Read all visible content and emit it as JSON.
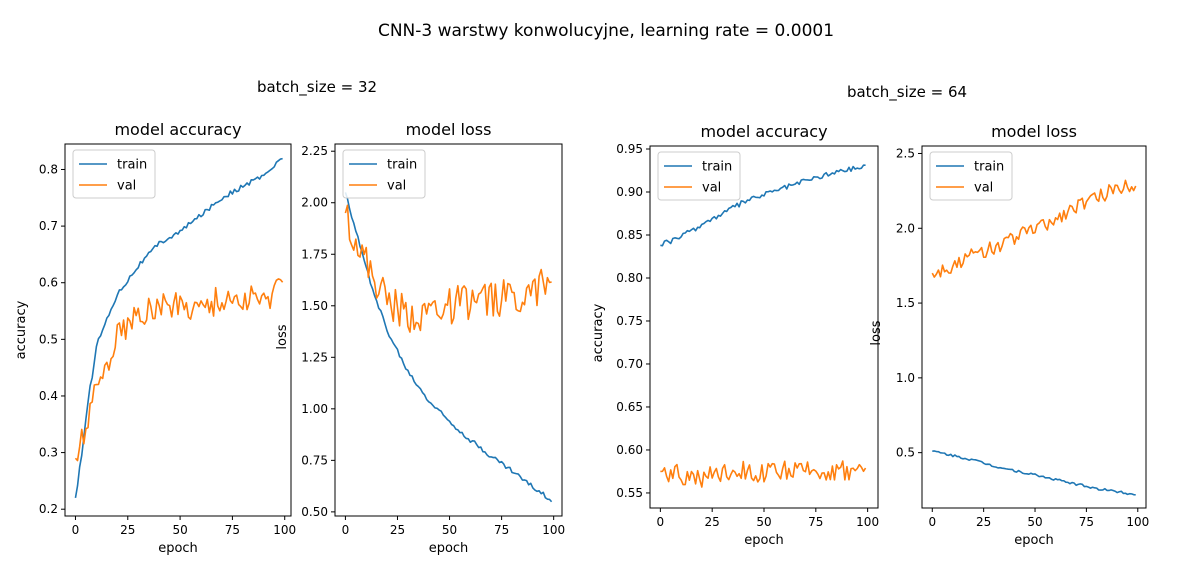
{
  "title": "CNN-3 warstwy konwolucyjne, learning rate = 0.0001",
  "groups": [
    {
      "label": "batch_size = 32"
    },
    {
      "label": "batch_size = 64"
    }
  ],
  "colors": {
    "train": "#1f77b4",
    "val": "#ff7f0e"
  },
  "chart_data": [
    {
      "type": "line",
      "title": "model accuracy",
      "xlabel": "epoch",
      "ylabel": "accuracy",
      "xlim": [
        -5,
        103
      ],
      "ylim": [
        0.188,
        0.845
      ],
      "xticks": [
        0,
        25,
        50,
        75,
        100
      ],
      "yticks": [
        0.2,
        0.3,
        0.4,
        0.5,
        0.6,
        0.7,
        0.8
      ],
      "ytick_labels": [
        "0.2",
        "0.3",
        "0.4",
        "0.5",
        "0.6",
        "0.7",
        "0.8"
      ],
      "legend": "upper-left",
      "x": [
        0,
        10,
        20,
        30,
        40,
        50,
        60,
        70,
        80,
        90,
        99
      ],
      "series": [
        {
          "name": "train",
          "values": [
            0.22,
            0.49,
            0.58,
            0.63,
            0.67,
            0.69,
            0.72,
            0.75,
            0.77,
            0.79,
            0.82
          ]
        },
        {
          "name": "val",
          "values": [
            0.29,
            0.41,
            0.51,
            0.54,
            0.56,
            0.56,
            0.56,
            0.57,
            0.57,
            0.57,
            0.59
          ]
        }
      ]
    },
    {
      "type": "line",
      "title": "model loss",
      "xlabel": "epoch",
      "ylabel": "loss",
      "xlim": [
        -5,
        104
      ],
      "ylim": [
        0.48,
        2.285
      ],
      "xticks": [
        0,
        25,
        50,
        75,
        100
      ],
      "yticks": [
        0.5,
        0.75,
        1.0,
        1.25,
        1.5,
        1.75,
        2.0,
        2.25
      ],
      "ytick_labels": [
        "0.50",
        "0.75",
        "1.00",
        "1.25",
        "1.50",
        "1.75",
        "2.00",
        "2.25"
      ],
      "legend": "upper-left",
      "x": [
        0,
        10,
        20,
        30,
        40,
        50,
        60,
        70,
        80,
        90,
        99
      ],
      "series": [
        {
          "name": "train",
          "values": [
            2.05,
            1.68,
            1.38,
            1.18,
            1.04,
            0.94,
            0.85,
            0.77,
            0.7,
            0.62,
            0.56
          ]
        },
        {
          "name": "val",
          "values": [
            1.95,
            1.7,
            1.52,
            1.45,
            1.48,
            1.5,
            1.52,
            1.53,
            1.55,
            1.58,
            1.6
          ]
        }
      ]
    },
    {
      "type": "line",
      "title": "model accuracy",
      "xlabel": "epoch",
      "ylabel": "accuracy",
      "xlim": [
        -5,
        105
      ],
      "ylim": [
        0.5325,
        0.9535
      ],
      "xticks": [
        0,
        25,
        50,
        75,
        100
      ],
      "yticks": [
        0.55,
        0.6,
        0.65,
        0.7,
        0.75,
        0.8,
        0.85,
        0.9,
        0.95
      ],
      "ytick_labels": [
        "0.55",
        "0.60",
        "0.65",
        "0.70",
        "0.75",
        "0.80",
        "0.85",
        "0.90",
        "0.95"
      ],
      "legend": "upper-left",
      "x": [
        0,
        10,
        20,
        30,
        40,
        50,
        60,
        70,
        80,
        90,
        99
      ],
      "series": [
        {
          "name": "train",
          "values": [
            0.838,
            0.848,
            0.862,
            0.875,
            0.888,
            0.897,
            0.905,
            0.913,
            0.92,
            0.926,
            0.93
          ]
        },
        {
          "name": "val",
          "values": [
            0.575,
            0.572,
            0.568,
            0.575,
            0.578,
            0.573,
            0.576,
            0.575,
            0.577,
            0.576,
            0.58
          ]
        }
      ]
    },
    {
      "type": "line",
      "title": "model loss",
      "xlabel": "epoch",
      "ylabel": "loss",
      "xlim": [
        -5,
        104
      ],
      "ylim": [
        0.13,
        2.55
      ],
      "xticks": [
        0,
        25,
        50,
        75,
        100
      ],
      "yticks": [
        0.5,
        1.0,
        1.5,
        2.0,
        2.5
      ],
      "ytick_labels": [
        "0.5",
        "1.0",
        "1.5",
        "2.0",
        "2.5"
      ],
      "legend": "upper-left",
      "x": [
        0,
        10,
        20,
        30,
        40,
        50,
        60,
        70,
        80,
        90,
        99
      ],
      "series": [
        {
          "name": "train",
          "values": [
            0.51,
            0.48,
            0.45,
            0.41,
            0.38,
            0.35,
            0.32,
            0.29,
            0.26,
            0.24,
            0.22
          ]
        },
        {
          "name": "val",
          "values": [
            1.7,
            1.75,
            1.82,
            1.87,
            1.94,
            2.0,
            2.06,
            2.15,
            2.2,
            2.27,
            2.3
          ]
        }
      ]
    }
  ]
}
